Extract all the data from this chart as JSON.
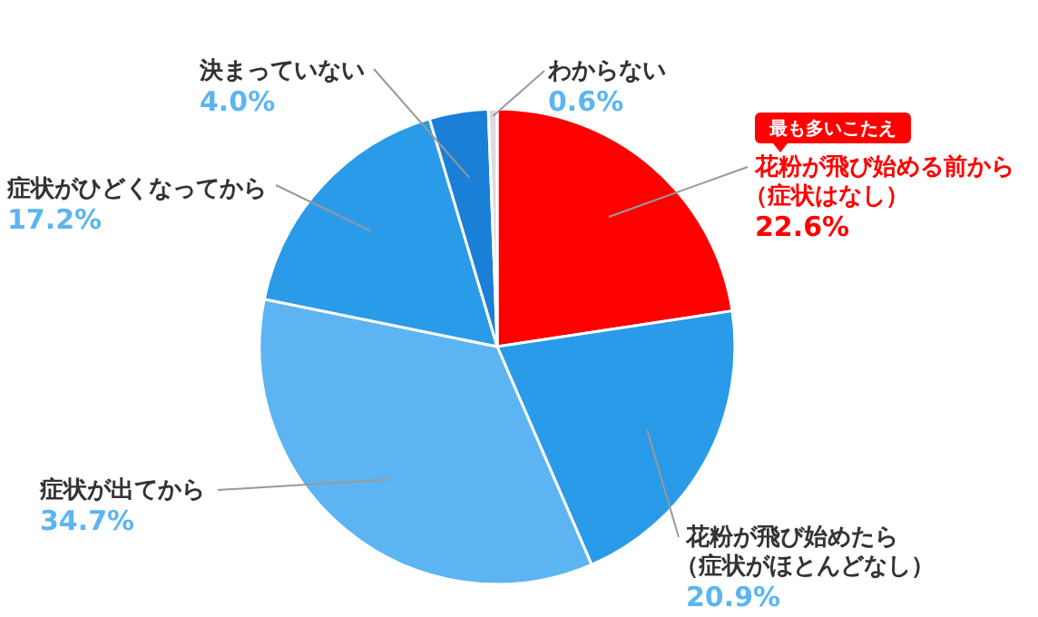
{
  "chart_data": {
    "type": "pie",
    "categories": [
      "花粉が飛び始める前から（症状はなし）",
      "花粉が飛び始めたら（症状がほとんどなし）",
      "症状が出てから",
      "症状がひどくなってから",
      "決まっていない",
      "わからない"
    ],
    "values": [
      22.6,
      20.9,
      34.7,
      17.2,
      4.0,
      0.6
    ],
    "colors": [
      "#ff0000",
      "#2a9be8",
      "#5cb5f2",
      "#2a9be8",
      "#1a7fd6",
      "#dcdcdc"
    ],
    "value_labels": [
      "22.6%",
      "20.9%",
      "34.7%",
      "17.2%",
      "4.0%",
      "0.6%"
    ],
    "annotations": [
      "最も多いこたえ"
    ]
  }
}
